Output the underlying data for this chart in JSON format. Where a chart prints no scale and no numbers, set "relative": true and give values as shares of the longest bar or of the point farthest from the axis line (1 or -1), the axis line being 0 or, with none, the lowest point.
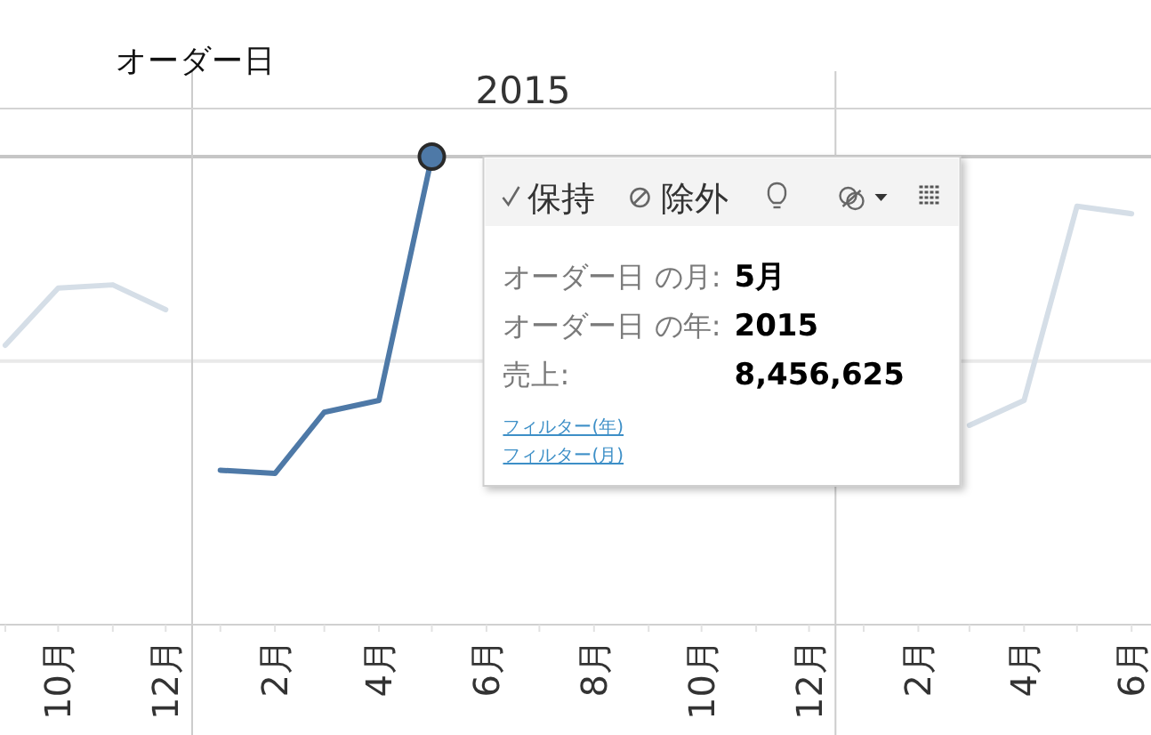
{
  "chart_data": {
    "type": "line",
    "title": "オーダー日",
    "subtitle": "2015",
    "relative": true,
    "xlim": [
      "2014-08-29",
      "2016-06-12"
    ],
    "xticks": [
      {
        "value": "2014-09",
        "label": null
      },
      {
        "value": "2014-10",
        "label": "10月"
      },
      {
        "value": "2014-11",
        "label": null
      },
      {
        "value": "2014-12",
        "label": "12月"
      },
      {
        "value": "2015-01",
        "label": null
      },
      {
        "value": "2015-02",
        "label": "2月"
      },
      {
        "value": "2015-03",
        "label": null
      },
      {
        "value": "2015-04",
        "label": "4月"
      },
      {
        "value": "2015-05",
        "label": null
      },
      {
        "value": "2015-06",
        "label": "6月"
      },
      {
        "value": "2015-07",
        "label": null
      },
      {
        "value": "2015-08",
        "label": "8月"
      },
      {
        "value": "2015-09",
        "label": null
      },
      {
        "value": "2015-10",
        "label": "10月"
      },
      {
        "value": "2015-11",
        "label": null
      },
      {
        "value": "2015-12",
        "label": "12月"
      },
      {
        "value": "2016-01",
        "label": null
      },
      {
        "value": "2016-02",
        "label": "2月"
      },
      {
        "value": "2016-03",
        "label": null
      },
      {
        "value": "2016-04",
        "label": "4月"
      },
      {
        "value": "2016-05",
        "label": null
      },
      {
        "value": "2016-06",
        "label": "6月"
      }
    ],
    "series": [
      {
        "color": "#d5dee7",
        "x": [
          "2014-09",
          "2014-10",
          "2014-11",
          "2014-12"
        ],
        "values": [
          0.597,
          0.719,
          0.726,
          0.673
        ]
      },
      {
        "color": "#4e79a7",
        "x": [
          "2015-01",
          "2015-02",
          "2015-03",
          "2015-04",
          "2015-05"
        ],
        "values": [
          0.33,
          0.323,
          0.454,
          0.479,
          1
        ]
      },
      {
        "color": "#d5dee7",
        "x": [
          "2016-03",
          "2016-04",
          "2016-05",
          "2016-06"
        ],
        "values": [
          0.426,
          0.479,
          0.894,
          0.878
        ]
      },
      {
        "type": "scatter",
        "marker": "circle",
        "color": "#4e79a7",
        "x": [
          "2015-05"
        ],
        "values": [
          1
        ]
      }
    ],
    "ref_lines": [
      {
        "axis": "y",
        "value": 1,
        "color": "#c6c6c6"
      },
      {
        "axis": "y",
        "value": 0.563,
        "color": "#e9e9e9"
      },
      {
        "axis": "x",
        "value": "2014-12-16",
        "color": "#cccccc"
      },
      {
        "axis": "x",
        "value": "2015-12-16",
        "color": "#cccccc"
      }
    ],
    "annotations": [
      "保持",
      "除外",
      "オーダー日 の月:",
      "5月",
      "オーダー日 の年:",
      "2015",
      "売上:",
      "8,456,625",
      "フィルター(年)",
      "フィルター(月)"
    ]
  }
}
